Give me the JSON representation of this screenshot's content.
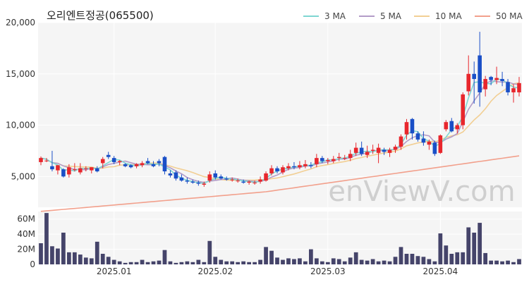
{
  "chart_data": {
    "type": "candlestick",
    "title": "오리엔트정공(065500)",
    "watermark": "enViewV.com",
    "legend": [
      {
        "name": "3 MA",
        "color": "#7fd6d2"
      },
      {
        "name": "5 MA",
        "color": "#b39cc8"
      },
      {
        "name": "10 MA",
        "color": "#f2cf94"
      },
      {
        "name": "50 MA",
        "color": "#f2a08c"
      }
    ],
    "legend_position": "top-right",
    "price_axis": {
      "min": 2000,
      "max": 20000,
      "ticks": [
        5000,
        10000,
        15000,
        20000
      ],
      "tick_labels": [
        "5,000",
        "10,000",
        "15,000",
        "20,000"
      ]
    },
    "volume_axis": {
      "min": 0,
      "max": 70,
      "unit": "M",
      "ticks": [
        0,
        20,
        40,
        60
      ],
      "tick_labels": [
        "0",
        "20M",
        "40M",
        "60M"
      ]
    },
    "x_tick_labels": [
      {
        "index": 13,
        "label": "2025.01"
      },
      {
        "index": 31,
        "label": "2025.02"
      },
      {
        "index": 51,
        "label": "2025.03"
      },
      {
        "index": 71,
        "label": "2025.04"
      }
    ],
    "colors": {
      "up": "#e8262c",
      "down": "#1a4fc7",
      "volume": "#45446a",
      "plot_bg": "#f5f5f5",
      "grid": "#ffffff"
    },
    "candles": [
      [
        6400,
        6950,
        6100,
        6800,
        28
      ],
      [
        6550,
        6800,
        6400,
        6550,
        68
      ],
      [
        6000,
        7500,
        5500,
        5700,
        24
      ],
      [
        5600,
        6100,
        5200,
        6100,
        21
      ],
      [
        5700,
        5800,
        4900,
        5000,
        42
      ],
      [
        5200,
        6200,
        4900,
        5900,
        16
      ],
      [
        5700,
        6300,
        5500,
        5700,
        16
      ],
      [
        5400,
        6300,
        5200,
        5800,
        13
      ],
      [
        5800,
        6000,
        5500,
        5800,
        9
      ],
      [
        5600,
        5900,
        5300,
        5900,
        8
      ],
      [
        5800,
        6000,
        5400,
        5500,
        30
      ],
      [
        6300,
        6900,
        5800,
        6700,
        14
      ],
      [
        7100,
        7400,
        6700,
        6900,
        10
      ],
      [
        6800,
        7000,
        6200,
        6400,
        6
      ],
      [
        6400,
        6600,
        6100,
        6500,
        4
      ],
      [
        6200,
        6300,
        5900,
        6000,
        2
      ],
      [
        6100,
        6200,
        5800,
        5900,
        3
      ],
      [
        6000,
        6300,
        5800,
        6200,
        3
      ],
      [
        6100,
        6500,
        5900,
        6300,
        6
      ],
      [
        6500,
        6800,
        6200,
        6300,
        3
      ],
      [
        6200,
        6500,
        5900,
        6000,
        4
      ],
      [
        6500,
        6700,
        6000,
        6300,
        5
      ],
      [
        6900,
        7000,
        5200,
        5500,
        19
      ],
      [
        5300,
        5600,
        4900,
        5100,
        4
      ],
      [
        5400,
        5600,
        4600,
        4800,
        2
      ],
      [
        4900,
        5200,
        4500,
        4600,
        3
      ],
      [
        4600,
        4900,
        4300,
        4500,
        4
      ],
      [
        4500,
        4700,
        4300,
        4400,
        3
      ],
      [
        4400,
        4600,
        4100,
        4300,
        6
      ],
      [
        4200,
        4500,
        4000,
        4300,
        3
      ],
      [
        4600,
        5500,
        4400,
        5200,
        31
      ],
      [
        5300,
        5600,
        4700,
        4900,
        10
      ],
      [
        5000,
        5200,
        4700,
        4800,
        6
      ],
      [
        4800,
        5000,
        4600,
        4700,
        4
      ],
      [
        4700,
        4900,
        4500,
        4700,
        4
      ],
      [
        4600,
        4800,
        4400,
        4600,
        3
      ],
      [
        4500,
        4700,
        4300,
        4400,
        4
      ],
      [
        4400,
        4600,
        4200,
        4500,
        3
      ],
      [
        4400,
        4600,
        4200,
        4400,
        3
      ],
      [
        4500,
        5000,
        4300,
        4700,
        6
      ],
      [
        4600,
        5500,
        4500,
        5300,
        23
      ],
      [
        5300,
        6100,
        5100,
        5800,
        18
      ],
      [
        5800,
        6000,
        5300,
        5500,
        9
      ],
      [
        5400,
        6100,
        5200,
        5900,
        6
      ],
      [
        5800,
        6300,
        5600,
        6000,
        8
      ],
      [
        6000,
        6400,
        5700,
        5900,
        7
      ],
      [
        5900,
        6500,
        5700,
        6100,
        8
      ],
      [
        6000,
        6600,
        5800,
        6200,
        4
      ],
      [
        6100,
        6400,
        5800,
        6000,
        20
      ],
      [
        6200,
        7200,
        5900,
        6800,
        8
      ],
      [
        6800,
        7000,
        6300,
        6500,
        4
      ],
      [
        6500,
        6800,
        6200,
        6600,
        3
      ],
      [
        6500,
        7000,
        6300,
        6700,
        8
      ],
      [
        6800,
        7300,
        6500,
        6900,
        7
      ],
      [
        6800,
        7100,
        6600,
        6800,
        4
      ],
      [
        6800,
        7600,
        6500,
        7200,
        9
      ],
      [
        7300,
        8300,
        7000,
        7800,
        16
      ],
      [
        7800,
        8400,
        7000,
        7200,
        6
      ],
      [
        7100,
        8000,
        6800,
        7400,
        5
      ],
      [
        7500,
        8100,
        7200,
        7600,
        7
      ],
      [
        7300,
        8200,
        6300,
        7800,
        4
      ],
      [
        7600,
        7800,
        7100,
        7400,
        5
      ],
      [
        7300,
        7800,
        6900,
        7600,
        4
      ],
      [
        7600,
        8100,
        7300,
        7900,
        10
      ],
      [
        7900,
        9100,
        7600,
        8900,
        23
      ],
      [
        9100,
        10600,
        8600,
        10300,
        14
      ],
      [
        10600,
        10700,
        8600,
        9200,
        14
      ],
      [
        9200,
        9400,
        8400,
        8600,
        11
      ],
      [
        8700,
        9400,
        8000,
        8300,
        10
      ],
      [
        8100,
        8600,
        7600,
        8400,
        7
      ],
      [
        8300,
        8500,
        7000,
        7200,
        4
      ],
      [
        7300,
        9100,
        7200,
        9000,
        41
      ],
      [
        9600,
        10500,
        9400,
        10300,
        25
      ],
      [
        10400,
        10700,
        9300,
        9400,
        14
      ],
      [
        9600,
        10200,
        9200,
        10000,
        16
      ],
      [
        10000,
        13200,
        9600,
        13000,
        16
      ],
      [
        13300,
        16800,
        12900,
        15000,
        49
      ],
      [
        15000,
        16200,
        12100,
        14500,
        42
      ],
      [
        16800,
        19100,
        11800,
        13200,
        55
      ],
      [
        13500,
        14800,
        12800,
        14500,
        15
      ],
      [
        14700,
        14800,
        13900,
        14400,
        5
      ],
      [
        14400,
        15700,
        14000,
        14600,
        5
      ],
      [
        14500,
        15200,
        13800,
        14300,
        4
      ],
      [
        14200,
        14500,
        12900,
        13200,
        5
      ],
      [
        13200,
        14000,
        12200,
        13600,
        3
      ],
      [
        13200,
        14700,
        12800,
        14100,
        7
      ]
    ]
  }
}
